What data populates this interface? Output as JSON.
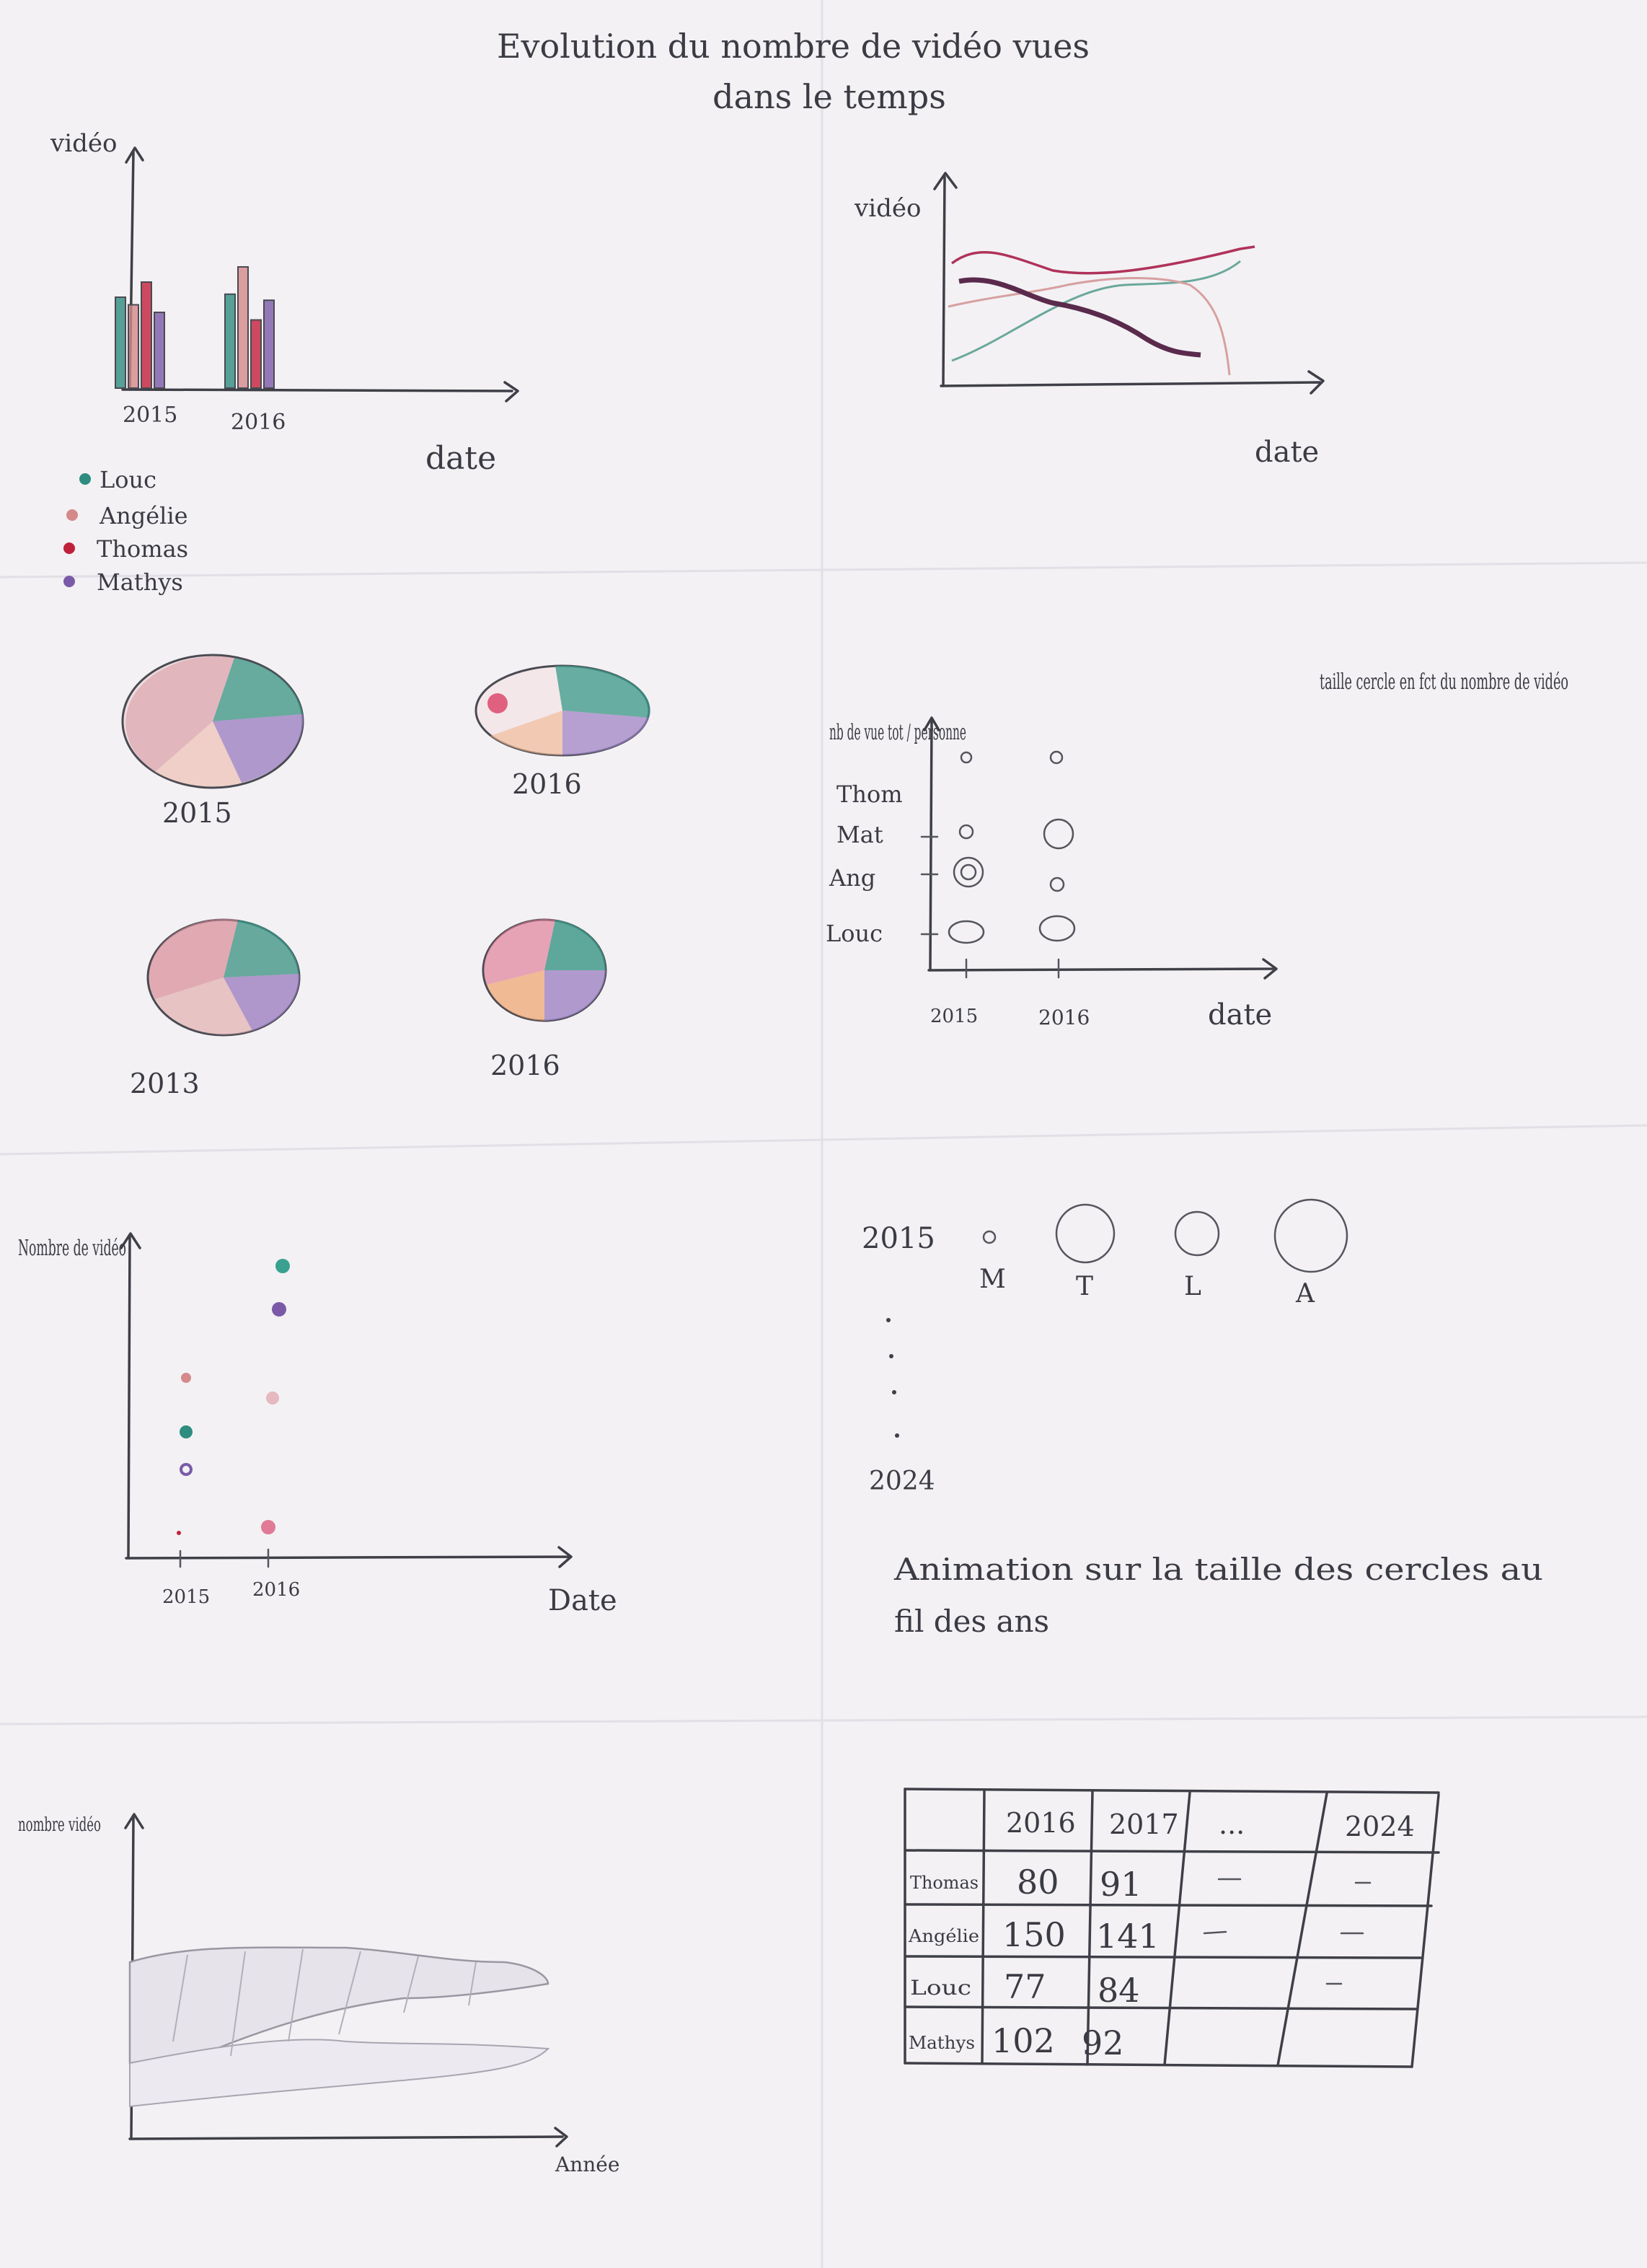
{
  "title_line1": "Evolution du nombre de vidéo vues",
  "title_line2": "dans le temps",
  "colors": {
    "Louc": "#2e8c80",
    "Angélie": "#d48a8a",
    "Thomas": "#c0213a",
    "Mathys": "#7a5aa8",
    "ink": "#3f3f48"
  },
  "bar_sketch": {
    "ylabel": "vidéo",
    "xlabel": "date",
    "legend": [
      "Louc",
      "Angélie",
      "Thomas",
      "Mathys"
    ],
    "chart_data": {
      "type": "bar",
      "categories": [
        "2015",
        "2016"
      ],
      "series": [
        {
          "name": "Louc",
          "values": [
            60,
            62
          ]
        },
        {
          "name": "Angélie",
          "values": [
            55,
            80
          ]
        },
        {
          "name": "Thomas",
          "values": [
            70,
            45
          ]
        },
        {
          "name": "Mathys",
          "values": [
            50,
            58
          ]
        }
      ]
    }
  },
  "line_sketch": {
    "ylabel": "vidéo",
    "xlabel": "date"
  },
  "pies": [
    {
      "label": "2015"
    },
    {
      "label": "2016"
    },
    {
      "label": "2013"
    },
    {
      "label": "2016"
    }
  ],
  "bubble_sketch": {
    "ylabel": "nb de vue tot / personne",
    "rows": [
      "Thom",
      "Mat",
      "Ang",
      "Louc"
    ],
    "x_ticks": [
      "2015",
      "2016"
    ],
    "xlabel": "date",
    "note": "taille cercle en fct du nombre de vidéo"
  },
  "scatter_sketch": {
    "ylabel": "Nombre de vidéo",
    "xlabel": "Date",
    "x_ticks": [
      "2015",
      "2016"
    ]
  },
  "animation_sketch": {
    "year_start": "2015",
    "year_end": "2024",
    "labels": [
      "M",
      "T",
      "L",
      "A"
    ],
    "caption_line1": "Animation sur la taille des cercles au",
    "caption_line2": "fil des ans"
  },
  "area_sketch": {
    "ylabel": "nombre vidéo",
    "xlabel": "Année"
  },
  "table_sketch": {
    "headers": [
      "",
      "2016",
      "2017",
      "...",
      "2024"
    ],
    "rows": [
      {
        "name": "Thomas",
        "v1": "80",
        "v2": "91"
      },
      {
        "name": "Angélie",
        "v1": "150",
        "v2": "141"
      },
      {
        "name": "Louc",
        "v1": "77",
        "v2": "84"
      },
      {
        "name": "Mathys",
        "v1": "102",
        "v2": "92"
      }
    ]
  }
}
